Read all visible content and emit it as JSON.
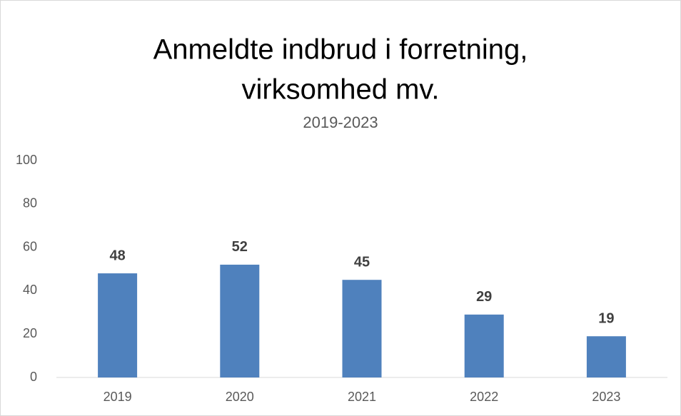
{
  "chart_data": {
    "type": "bar",
    "title": [
      "Anmeldte indbrud i forretning,",
      "virksomhed mv."
    ],
    "subtitle": "2019-2023",
    "categories": [
      "2019",
      "2020",
      "2021",
      "2022",
      "2023"
    ],
    "values": [
      48,
      52,
      45,
      29,
      19
    ],
    "color": "#4f81bd",
    "data_labels": true,
    "ylim": [
      0,
      100
    ],
    "yticks": [
      0,
      20,
      40,
      60,
      80,
      100
    ],
    "grid": false
  }
}
